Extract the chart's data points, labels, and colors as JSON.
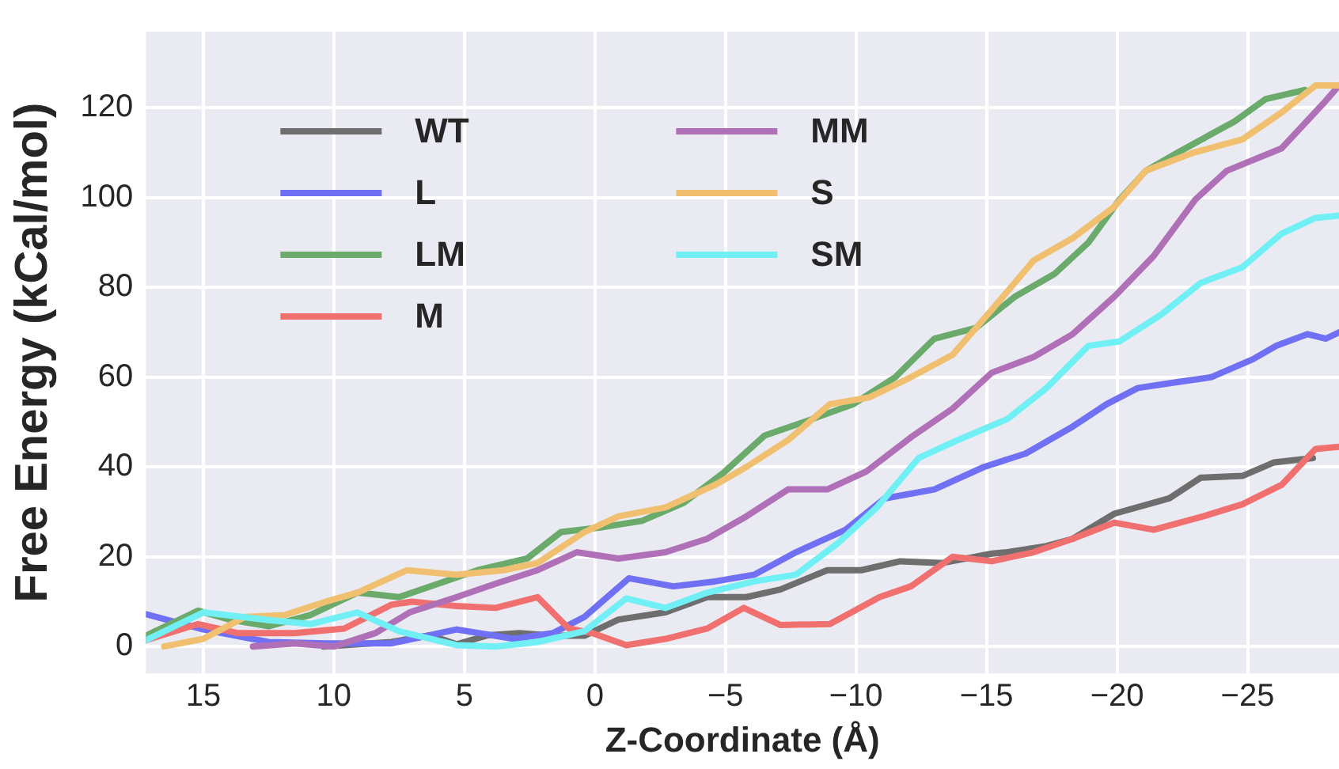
{
  "chart_data": {
    "type": "line",
    "xlabel": "Z-Coordinate (Å)",
    "ylabel": "Free Energy (kCal/mol)",
    "xlim": [
      17.2,
      -28.5
    ],
    "ylim": [
      -6,
      137
    ],
    "xticks": [
      15,
      10,
      5,
      0,
      {
        "value": -5,
        "label": "−5"
      },
      {
        "value": -10,
        "label": "−10"
      },
      {
        "value": -15,
        "label": "−15"
      },
      {
        "value": -20,
        "label": "−20"
      },
      {
        "value": -25,
        "label": "−25"
      }
    ],
    "yticks": [
      0,
      20,
      40,
      60,
      80,
      100,
      120
    ],
    "grid": true,
    "legend": "top left",
    "marker": "none",
    "line_style": "solid",
    "series": [
      {
        "name": "WT",
        "color": "#6e6e6e",
        "x": [
          10.4,
          7.8,
          6.3,
          5.3,
          4.1,
          2.9,
          1.6,
          0.4,
          -0.9,
          -2.7,
          -4.3,
          -5.8,
          -7.1,
          -8.9,
          -10.2,
          -11.7,
          -13.3,
          -15.2,
          -15.8,
          -17.3,
          -18.3,
          -19.9,
          -22.0,
          -23.2,
          -24.8,
          -26.0,
          -27.5
        ],
        "values": [
          0,
          1,
          2.5,
          0.5,
          2.5,
          3,
          2.4,
          2.4,
          6,
          7.6,
          11,
          11,
          12.7,
          17,
          17,
          19,
          18.6,
          20.7,
          21,
          22.4,
          24,
          29.6,
          33,
          37.6,
          38,
          41,
          42
        ]
      },
      {
        "name": "L",
        "color": "#7070f5",
        "x": [
          17.2,
          15.0,
          12.5,
          10.3,
          9.4,
          7.8,
          5.3,
          3.1,
          1.6,
          0.4,
          -1.3,
          -3.0,
          -4.6,
          -6.1,
          -7.7,
          -9.6,
          -11.1,
          -13.0,
          -14.9,
          -16.5,
          -18.3,
          -19.6,
          -20.8,
          -22.4,
          -23.6,
          -25.2,
          -26.1,
          -27.3,
          -28.0,
          -28.5
        ],
        "values": [
          7.2,
          3.8,
          1,
          0.7,
          0.7,
          0.7,
          3.8,
          1.7,
          3,
          6.6,
          15.2,
          13.4,
          14.5,
          16,
          21,
          26,
          33,
          35,
          40,
          43,
          49,
          54,
          57.6,
          59,
          60,
          64,
          67,
          69.6,
          68.6,
          70
        ]
      },
      {
        "name": "LM",
        "color": "#6aaa6a",
        "x": [
          17.2,
          15.2,
          14.0,
          12.5,
          10.9,
          9.1,
          7.5,
          6.0,
          4.5,
          2.6,
          1.3,
          -0.2,
          -1.8,
          -3.4,
          -4.9,
          -6.5,
          -8.0,
          -9.9,
          -11.5,
          -13.0,
          -14.6,
          -16.1,
          -17.6,
          -18.9,
          -20.1,
          -21.1,
          -22.3,
          -24.5,
          -25.7,
          -27.2
        ],
        "values": [
          2.4,
          8,
          6,
          4.5,
          7,
          12,
          11,
          14,
          17,
          19.6,
          25.5,
          26.5,
          28,
          32,
          38.6,
          47,
          50,
          54,
          60,
          68.6,
          71,
          78,
          83,
          90,
          99.6,
          106,
          110,
          117,
          122,
          124
        ]
      },
      {
        "name": "M",
        "color": "#f07070",
        "x": [
          17.2,
          15.2,
          13.7,
          11.5,
          9.6,
          7.8,
          7.0,
          5.3,
          3.8,
          2.2,
          1.0,
          0.1,
          -1.2,
          -2.7,
          -4.3,
          -5.7,
          -7.1,
          -9.0,
          -10.9,
          -12.1,
          -13.7,
          -15.2,
          -16.8,
          -18.3,
          -19.9,
          -21.4,
          -23.3,
          -24.8,
          -26.3,
          -27.6,
          -28.5
        ],
        "values": [
          1.4,
          5,
          3,
          3,
          4,
          9.3,
          10,
          9,
          8.6,
          11,
          4,
          3,
          0.3,
          1.7,
          4,
          8.6,
          4.8,
          5,
          11,
          13.4,
          20,
          19,
          21,
          24,
          27.6,
          26,
          29,
          31.7,
          36,
          44,
          44.5
        ]
      },
      {
        "name": "MM",
        "color": "#b070b8",
        "x": [
          13.1,
          11.5,
          10.0,
          8.4,
          7.1,
          5.3,
          3.8,
          2.2,
          0.7,
          -0.9,
          -2.7,
          -4.3,
          -5.8,
          -7.4,
          -8.9,
          -10.4,
          -12.1,
          -13.7,
          -15.2,
          -16.8,
          -18.3,
          -19.9,
          -21.4,
          -23.0,
          -24.2,
          -26.3,
          -27.9,
          -28.5
        ],
        "values": [
          0,
          0.7,
          0,
          3,
          7.6,
          11,
          14,
          17,
          21,
          19.6,
          21,
          24,
          29,
          35,
          35,
          39,
          46.6,
          53,
          61,
          64.5,
          69.6,
          78,
          87,
          99.6,
          106,
          111,
          121,
          125
        ]
      },
      {
        "name": "S",
        "color": "#f0c070",
        "x": [
          16.5,
          15.0,
          13.4,
          11.9,
          10.3,
          9.1,
          7.2,
          5.3,
          3.5,
          2.2,
          0.4,
          -0.9,
          -2.7,
          -4.6,
          -5.8,
          -7.4,
          -9.0,
          -10.5,
          -12.1,
          -13.7,
          -15.2,
          -16.8,
          -18.3,
          -19.9,
          -21.1,
          -22.9,
          -24.8,
          -26.3,
          -27.6,
          -28.5
        ],
        "values": [
          0,
          1.7,
          6.6,
          7,
          10,
          12,
          17,
          16,
          17,
          18.6,
          25.5,
          29,
          31,
          36,
          40,
          46,
          54,
          55.5,
          60,
          65,
          75,
          86,
          91,
          98,
          106,
          110,
          113,
          119,
          125,
          125
        ]
      },
      {
        "name": "SM",
        "color": "#70f0f5",
        "x": [
          17.2,
          15.0,
          12.5,
          10.9,
          9.1,
          7.5,
          5.3,
          3.8,
          2.2,
          0.4,
          -1.2,
          -2.7,
          -4.3,
          -6.1,
          -7.7,
          -9.3,
          -10.8,
          -12.4,
          -13.9,
          -15.8,
          -17.3,
          -18.9,
          -20.1,
          -21.7,
          -23.2,
          -24.8,
          -26.3,
          -27.6,
          -28.5
        ],
        "values": [
          1.4,
          7.6,
          5.9,
          5,
          7.6,
          3.4,
          0.3,
          0,
          1,
          3.4,
          10.7,
          8.6,
          12,
          14.5,
          16,
          23,
          31,
          42,
          46,
          50.7,
          57.6,
          67,
          68,
          74,
          81,
          84.5,
          92,
          95.5,
          96
        ]
      }
    ]
  }
}
